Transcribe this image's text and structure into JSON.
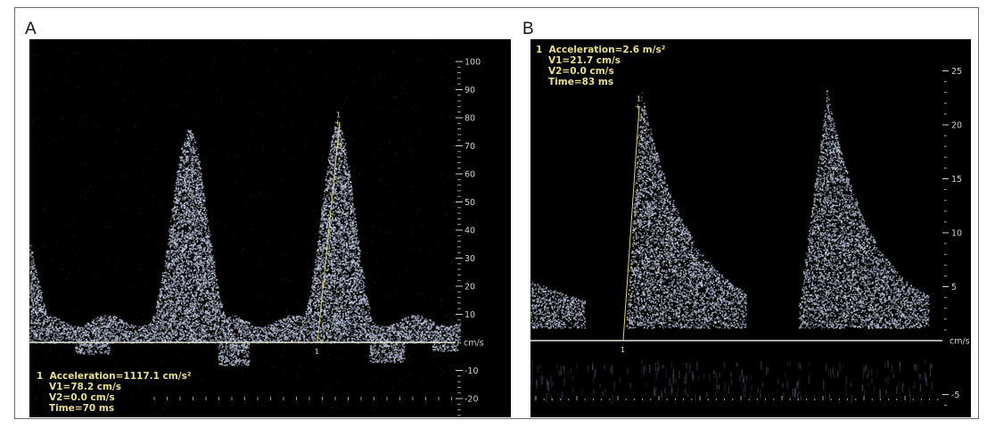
{
  "panel_a": {
    "letter": "A",
    "measurement": {
      "index": "1",
      "acceleration": "Acceleration=1117.1 cm/s²",
      "v1": "V1=78.2 cm/s",
      "v2": "V2=0.0 cm/s",
      "time": "Time=70 ms"
    },
    "axis": {
      "unit": "cm/s",
      "ticks": [
        "100",
        "90",
        "80",
        "70",
        "60",
        "50",
        "40",
        "30",
        "20",
        "10",
        "-10",
        "-20"
      ]
    },
    "marker_label": "1"
  },
  "panel_b": {
    "letter": "B",
    "measurement": {
      "index": "1",
      "acceleration": "Acceleration=2.6 m/s²",
      "v1": "V1=21.7 cm/s",
      "v2": "V2=0.0 cm/s",
      "time": "Time=83 ms"
    },
    "axis": {
      "unit": "cm/s",
      "ticks": [
        "25",
        "20",
        "15",
        "10",
        "5",
        "-5"
      ]
    },
    "marker_label": "1"
  },
  "colors": {
    "background": "#000000",
    "doppler": "#c7cfe6",
    "baseline": "#e6e6d8",
    "measurement_text": "#e8e08a"
  }
}
